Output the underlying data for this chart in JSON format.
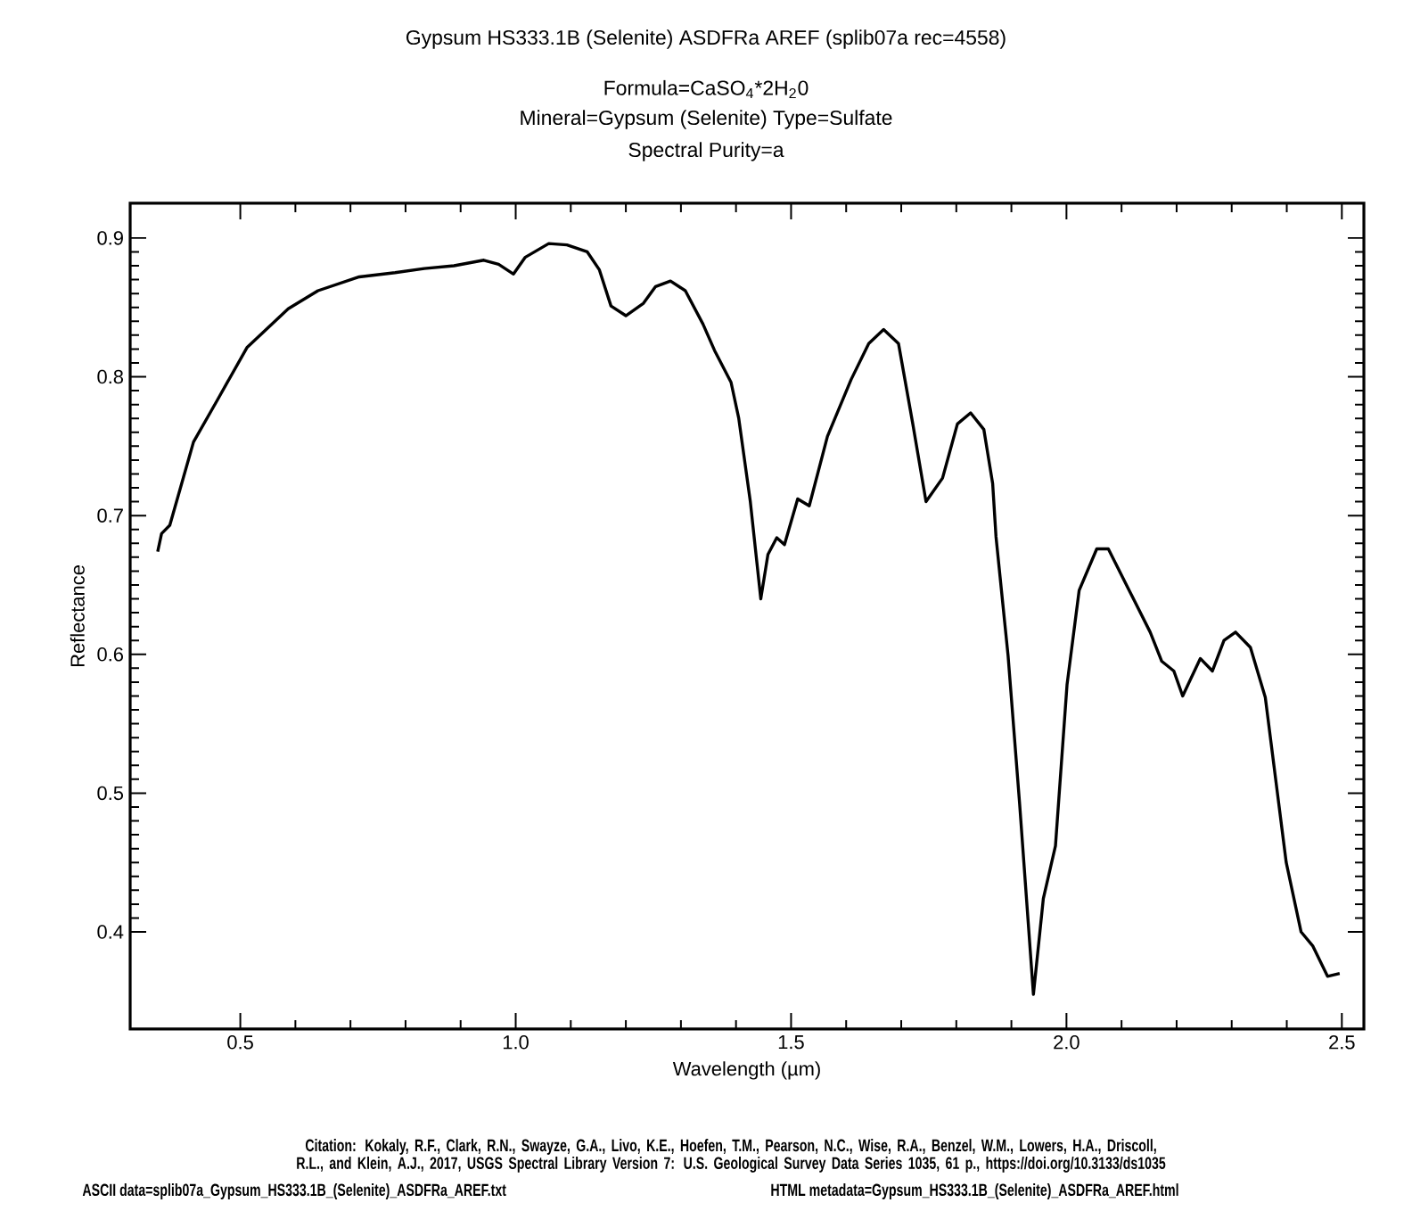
{
  "chart_data": {
    "type": "line",
    "title": "Gypsum HS333.1B (Selenite)    ASDFRa AREF    (splib07a rec=4558)",
    "subtitle": "Formula=CaSO$_{4}$*2H$_{2}$0",
    "annotations": [
      "Mineral=Gypsum (Selenite)  Type=Sulfate",
      "Spectral Purity=a",
      "Citation: Kokaly, R.F., Clark, R.N., Swayze, G.A., Livo, K.E., Hoefen, T.M., Pearson, N.C., Wise, R.A., Benzel, W.M., Lowers, H.A., Driscoll, R.L., and Klein, A.J., 2017, USGS Spectral Library Version 7: U.S. Geological Survey Data Series 1035, 61 p., https://doi.org/10.3133/ds1035",
      "ASCII data=splib07a_Gypsum_HS333.1B_(Selenite)_ASDFRa_AREF.txt",
      "HTML metadata=Gypsum_HS333.1B_(Selenite)_ASDFRa_AREF.html"
    ],
    "xlabel": "Wavelength (µm)",
    "ylabel": "Reflectance",
    "xlim": [
      0.3,
      2.54
    ],
    "ylim": [
      0.33,
      0.925
    ],
    "xticks": [
      {
        "value": 0.5,
        "label": "0.5"
      },
      {
        "value": 1.0,
        "label": "1.0"
      },
      {
        "value": 1.5,
        "label": "1.5"
      },
      {
        "value": 2.0,
        "label": "2.0"
      },
      {
        "value": 2.5,
        "label": "2.5"
      }
    ],
    "yticks": [
      {
        "value": 0.4,
        "label": "0.4"
      },
      {
        "value": 0.5,
        "label": "0.5"
      },
      {
        "value": 0.6,
        "label": "0.6"
      },
      {
        "value": 0.7,
        "label": "0.7"
      },
      {
        "value": 0.8,
        "label": "0.8"
      },
      {
        "value": 0.9,
        "label": "0.9"
      }
    ],
    "marker": "none",
    "line_style": "solid",
    "series": [
      {
        "color": "#000000",
        "x": [
          0.35,
          0.357,
          0.372,
          0.415,
          0.458,
          0.512,
          0.587,
          0.641,
          0.716,
          0.781,
          0.834,
          0.888,
          0.942,
          0.969,
          0.996,
          1.017,
          1.06,
          1.093,
          1.13,
          1.152,
          1.173,
          1.2,
          1.232,
          1.254,
          1.281,
          1.308,
          1.34,
          1.361,
          1.391,
          1.405,
          1.426,
          1.445,
          1.458,
          1.474,
          1.488,
          1.512,
          1.533,
          1.566,
          1.609,
          1.641,
          1.668,
          1.695,
          1.721,
          1.745,
          1.775,
          1.802,
          1.826,
          1.85,
          1.866,
          1.872,
          1.894,
          1.915,
          1.94,
          1.958,
          1.98,
          2.001,
          2.023,
          2.055,
          2.076,
          2.114,
          2.152,
          2.173,
          2.195,
          2.211,
          2.243,
          2.265,
          2.286,
          2.307,
          2.334,
          2.361,
          2.399,
          2.426,
          2.447,
          2.474,
          2.496
        ],
        "values": [
          0.674,
          0.687,
          0.693,
          0.753,
          0.783,
          0.821,
          0.849,
          0.862,
          0.872,
          0.875,
          0.878,
          0.88,
          0.884,
          0.881,
          0.874,
          0.886,
          0.896,
          0.895,
          0.89,
          0.877,
          0.851,
          0.844,
          0.853,
          0.865,
          0.869,
          0.862,
          0.838,
          0.819,
          0.796,
          0.77,
          0.71,
          0.64,
          0.672,
          0.684,
          0.679,
          0.712,
          0.707,
          0.757,
          0.798,
          0.824,
          0.834,
          0.824,
          0.766,
          0.71,
          0.727,
          0.766,
          0.774,
          0.762,
          0.723,
          0.685,
          0.599,
          0.492,
          0.355,
          0.424,
          0.462,
          0.578,
          0.646,
          0.676,
          0.676,
          0.646,
          0.616,
          0.595,
          0.588,
          0.57,
          0.597,
          0.588,
          0.61,
          0.616,
          0.605,
          0.569,
          0.45,
          0.4,
          0.39,
          0.368,
          0.37
        ]
      }
    ]
  }
}
